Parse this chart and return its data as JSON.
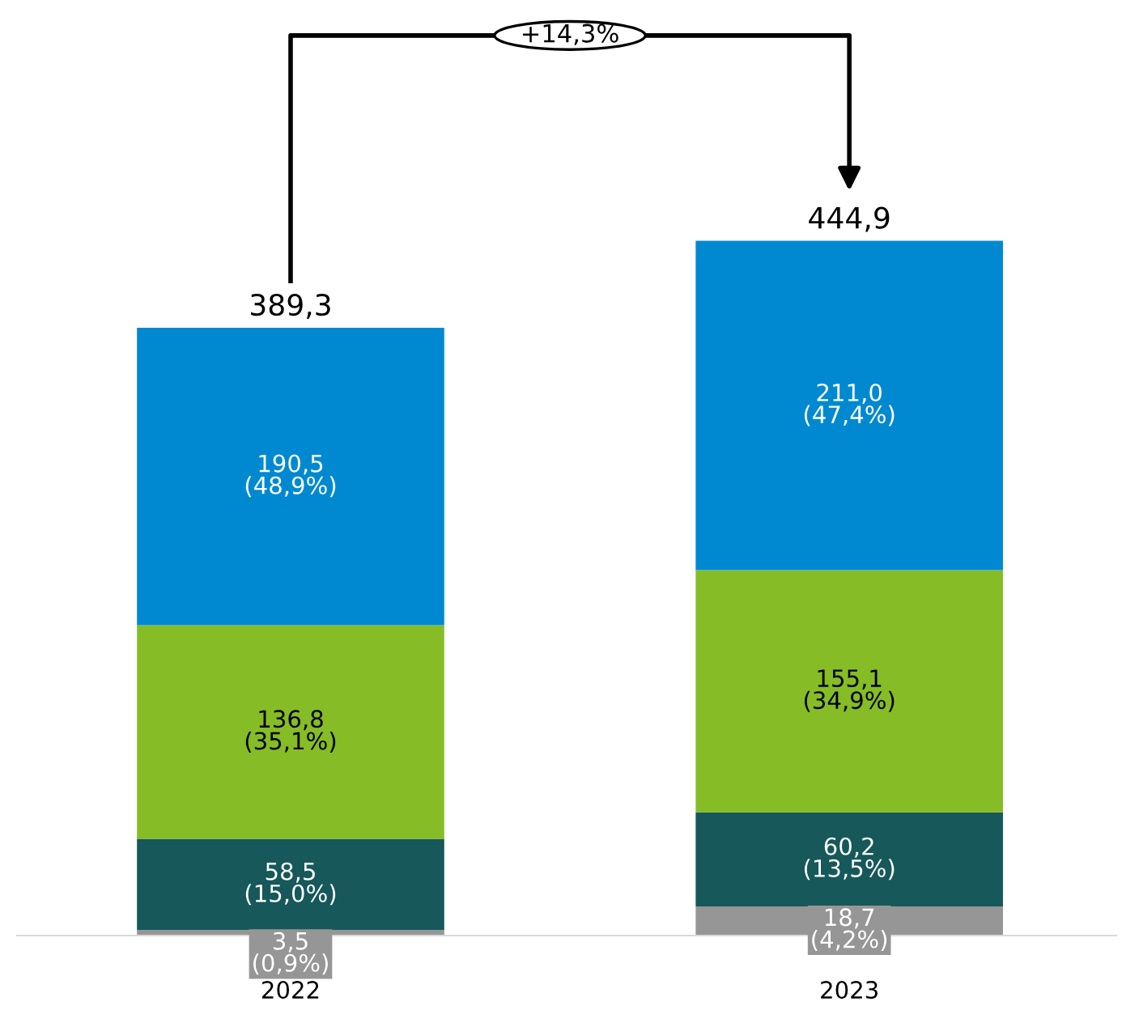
{
  "chart_data": {
    "type": "bar",
    "stacked": true,
    "categories": [
      "2022",
      "2023"
    ],
    "series": [
      {
        "color": "#969696",
        "values": [
          3.5,
          18.7
        ],
        "value_labels": [
          "3,5\n(0,9%)",
          "18,7\n(4,2%)"
        ]
      },
      {
        "color": "#17585a",
        "values": [
          58.5,
          60.2
        ],
        "value_labels": [
          "58,5\n(15,0%)",
          "60,2\n(13,5%)"
        ]
      },
      {
        "color": "#86bc25",
        "values": [
          136.8,
          155.1
        ],
        "value_labels": [
          "136,8\n(35,1%)",
          "155,1\n(34,9%)"
        ]
      },
      {
        "color": "#0089d1",
        "values": [
          190.5,
          211.0
        ],
        "value_labels": [
          "190,5\n(48,9%)",
          "211,0\n(47,4%)"
        ]
      }
    ],
    "totals": [
      "389,3",
      "444,9"
    ],
    "annotations": [
      "+14,3%"
    ],
    "grid": false,
    "legend": false
  }
}
